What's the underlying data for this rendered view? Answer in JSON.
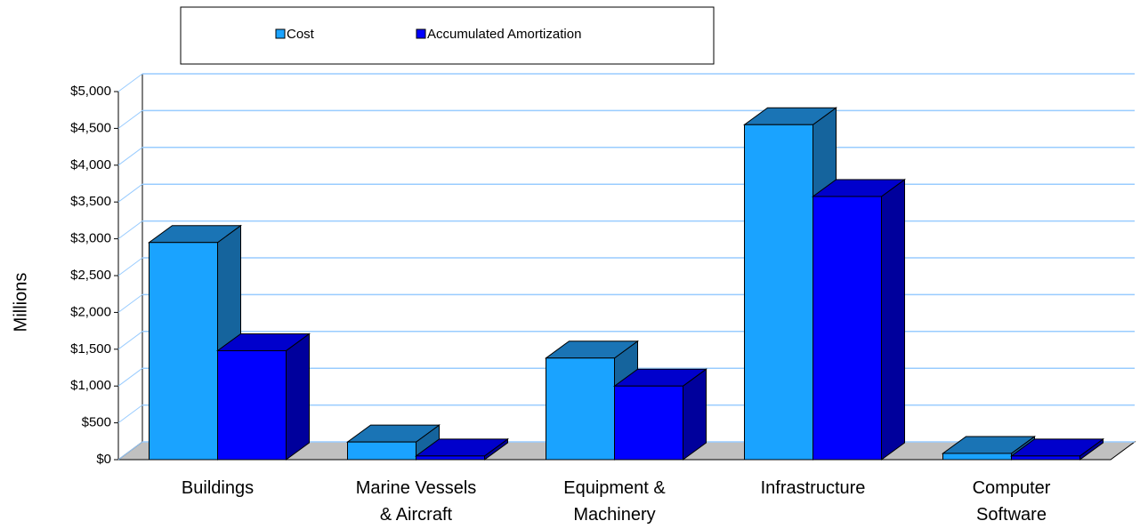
{
  "chart_data": {
    "type": "bar3d",
    "y_label": "Millions",
    "categories": [
      [
        "Buildings"
      ],
      [
        "Marine Vessels",
        "& Aircraft"
      ],
      [
        "Equipment &",
        "Machinery"
      ],
      [
        "Infrastructure"
      ],
      [
        "Computer",
        "Software"
      ]
    ],
    "series": [
      {
        "name": "Cost",
        "color": "#1aa3ff",
        "top_color": "#1a74b5",
        "side_color": "#15649d",
        "values": [
          2950,
          240,
          1380,
          4550,
          85
        ]
      },
      {
        "name": "Accumulated Amortization",
        "color": "#0000ff",
        "top_color": "#0000cc",
        "side_color": "#00009c",
        "values": [
          1480,
          50,
          1000,
          3575,
          50
        ]
      }
    ],
    "ylim": [
      0,
      5000
    ],
    "yticks": [
      {
        "value": 0,
        "label": "$0"
      },
      {
        "value": 500,
        "label": "$500"
      },
      {
        "value": 1000,
        "label": "$1,000"
      },
      {
        "value": 1500,
        "label": "$1,500"
      },
      {
        "value": 2000,
        "label": "$2,000"
      },
      {
        "value": 2500,
        "label": "$2,500"
      },
      {
        "value": 3000,
        "label": "$3,000"
      },
      {
        "value": 3500,
        "label": "$3,500"
      },
      {
        "value": 4000,
        "label": "$4,000"
      },
      {
        "value": 4500,
        "label": "$4,500"
      },
      {
        "value": 5000,
        "label": "$5,000"
      }
    ],
    "grid": true,
    "legend": "top"
  }
}
